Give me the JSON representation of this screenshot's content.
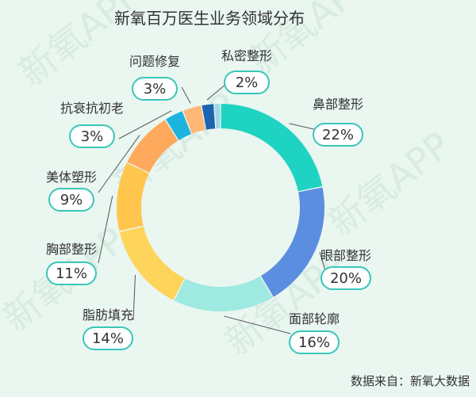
{
  "watermark_text": "新氧APP",
  "source": "数据来自：新氧大数据",
  "colors": {
    "background": "#eaf6f0",
    "pill_border": "#39c6b8"
  },
  "chart_data": {
    "type": "pie",
    "donut": true,
    "title": "新氧百万医生业务领域分布",
    "slices": [
      {
        "label": "鼻部整形",
        "value": 22,
        "display": "22%",
        "color": "#1fd3c2"
      },
      {
        "label": "眼部整形",
        "value": 20,
        "display": "20%",
        "color": "#5b8ee0"
      },
      {
        "label": "面部轮廓",
        "value": 16,
        "display": "16%",
        "color": "#9ee9e0"
      },
      {
        "label": "脂肪填充",
        "value": 14,
        "display": "14%",
        "color": "#ffd45a"
      },
      {
        "label": "胸部整形",
        "value": 11,
        "display": "11%",
        "color": "#ffc54d"
      },
      {
        "label": "美体塑形",
        "value": 9,
        "display": "9%",
        "color": "#ffa95c"
      },
      {
        "label": "抗衰抗初老",
        "value": 3,
        "display": "3%",
        "color": "#1cb4df"
      },
      {
        "label": "问题修复",
        "value": 3,
        "display": "3%",
        "color": "#ffb877"
      },
      {
        "label": "私密整形",
        "value": 2,
        "display": "2%",
        "color": "#1c64b0"
      },
      {
        "label": "",
        "value": 1,
        "display": "",
        "color": "#9ed7e8"
      }
    ]
  }
}
